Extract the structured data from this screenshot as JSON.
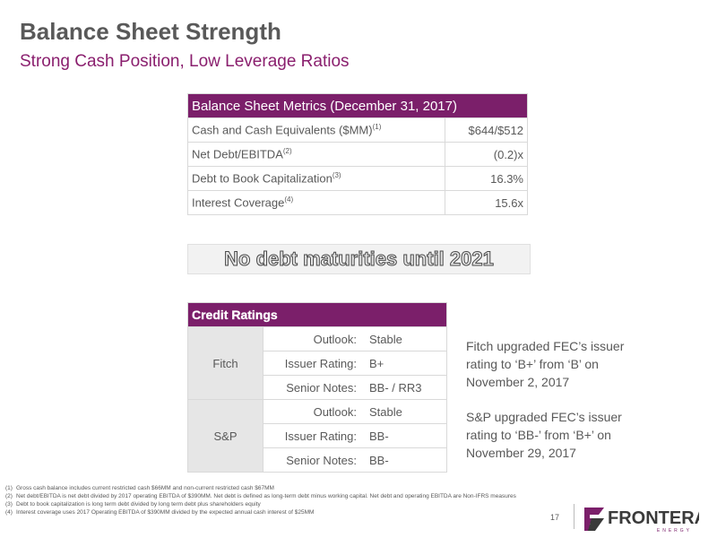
{
  "header": {
    "title": "Balance Sheet Strength",
    "subtitle": "Strong Cash Position, Low Leverage Ratios"
  },
  "metrics_table": {
    "title": "Balance Sheet Metrics (December 31, 2017)",
    "rows": [
      {
        "label": "Cash and Cash Equivalents ($MM)",
        "note": "(1)",
        "value": "$644/$512"
      },
      {
        "label": "Net Debt/EBITDA",
        "note": "(2)",
        "value": "(0.2)x"
      },
      {
        "label": "Debt to Book Capitalization",
        "note": "(3)",
        "value": "16.3%"
      },
      {
        "label": "Interest Coverage",
        "note": "(4)",
        "value": "15.6x"
      }
    ]
  },
  "banner": "No debt maturities until 2021",
  "ratings": {
    "title": "Credit Ratings",
    "agencies": [
      {
        "name": "Fitch",
        "rows": [
          {
            "field": "Outlook:",
            "value": "Stable"
          },
          {
            "field": "Issuer Rating:",
            "value": "B+"
          },
          {
            "field": "Senior Notes:",
            "value": "BB- / RR3"
          }
        ]
      },
      {
        "name": "S&P",
        "rows": [
          {
            "field": "Outlook:",
            "value": "Stable"
          },
          {
            "field": "Issuer Rating:",
            "value": "BB-"
          },
          {
            "field": "Senior Notes:",
            "value": "BB-"
          }
        ]
      }
    ]
  },
  "comments": [
    "Fitch upgraded FEC’s issuer rating to ‘B+’ from ‘B’ on November 2, 2017",
    "S&P upgraded FEC’s issuer rating to ‘BB-’ from ‘B+’ on November 29, 2017"
  ],
  "footnotes": [
    {
      "marker": "(1)",
      "text": "Gross cash balance includes current restricted cash $66MM and non-current restricted cash $67MM"
    },
    {
      "marker": "(2)",
      "text": "Net debt/EBITDA is net debt divided by 2017 operating EBITDA of $390MM. Net debt is defined as long-term debt minus working capital. Net debt and operating EBITDA are Non-IFRS measures"
    },
    {
      "marker": "(3)",
      "text": "Debt to book capitalization is long term debt divided by long term debt plus shareholders equity"
    },
    {
      "marker": "(4)",
      "text": "Interest coverage uses 2017 Operating EBITDA of $390MM divided by the expected annual cash interest of $25MM"
    }
  ],
  "page_number": "17",
  "logo": {
    "name": "FRONTERA",
    "sub": "ENERGY"
  }
}
